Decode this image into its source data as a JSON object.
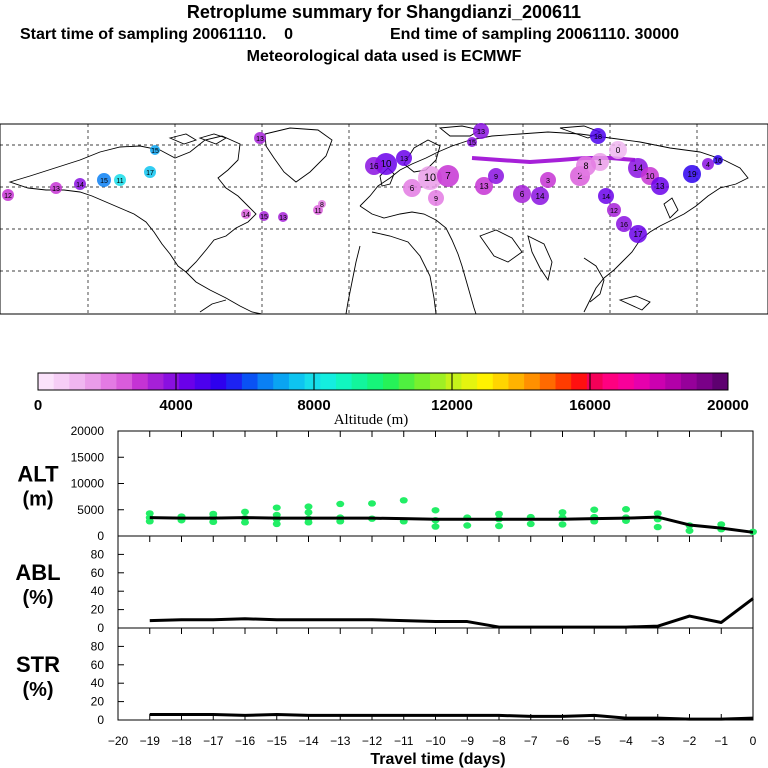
{
  "header": {
    "title": "Retroplume summary for Shangdianzi_200611",
    "start_line": "Start time of sampling 20061110.    0",
    "end_line": "End time of sampling 20061110. 30000",
    "met_line": "Meteorological data used is ECMWF"
  },
  "colors": {
    "line": "#000000",
    "alt_points": "#22ee66"
  },
  "colorbar": {
    "title": "Altitude (m)",
    "labels": [
      "0",
      "4000",
      "8000",
      "12000",
      "16000",
      "20000"
    ],
    "colors": [
      "#fbe3fb",
      "#f6cef6",
      "#f0b6f0",
      "#ea9ce9",
      "#e37ae3",
      "#d95cdb",
      "#c533d4",
      "#a620d8",
      "#8a10e0",
      "#6a00ea",
      "#4c00ee",
      "#2e00ef",
      "#1d22f2",
      "#0a52f4",
      "#0a80f4",
      "#0aa4f2",
      "#0ec4f0",
      "#16ddea",
      "#14eee0",
      "#11f6c0",
      "#12f59c",
      "#16f57a",
      "#26f258",
      "#4ff040",
      "#78f02e",
      "#9ff024",
      "#c5f21a",
      "#e4f40f",
      "#fff200",
      "#ffd500",
      "#ffb300",
      "#ff9000",
      "#ff6a00",
      "#ff3c00",
      "#ff1010",
      "#f40058",
      "#ff0080",
      "#f8009a",
      "#e600ad",
      "#cc00b0",
      "#b200a8",
      "#96009a",
      "#7a0088",
      "#5e0070"
    ]
  },
  "chart_data": [
    {
      "type": "line",
      "panel": "ALT",
      "ylabel": "ALT (m)",
      "ylabel_lines": [
        "ALT",
        "(m)"
      ],
      "ylim": [
        0,
        20000
      ],
      "yticks": [
        "0",
        "5000",
        "10000",
        "15000",
        "20000"
      ],
      "x": [
        -19,
        -18,
        -17,
        -16,
        -15,
        -14,
        -13,
        -12,
        -11,
        -10,
        -9,
        -8,
        -7,
        -6,
        -5,
        -4,
        -3,
        -2,
        -1,
        0
      ],
      "values": [
        3500,
        3400,
        3400,
        3500,
        3400,
        3400,
        3400,
        3400,
        3300,
        3200,
        3200,
        3200,
        3200,
        3200,
        3300,
        3400,
        3600,
        2100,
        1500,
        700
      ],
      "scatter": [
        {
          "x": -19,
          "y": [
            2800,
            3500,
            4300
          ]
        },
        {
          "x": -18,
          "y": [
            3000,
            3700
          ]
        },
        {
          "x": -17,
          "y": [
            2700,
            3600,
            4200
          ]
        },
        {
          "x": -16,
          "y": [
            2600,
            3400,
            4600
          ]
        },
        {
          "x": -15,
          "y": [
            2300,
            3200,
            4000,
            5400
          ]
        },
        {
          "x": -14,
          "y": [
            2600,
            3300,
            4500,
            5600
          ]
        },
        {
          "x": -13,
          "y": [
            2800,
            3500,
            6100
          ]
        },
        {
          "x": -12,
          "y": [
            3300,
            6200
          ]
        },
        {
          "x": -11,
          "y": [
            2800,
            6800
          ]
        },
        {
          "x": -10,
          "y": [
            1800,
            3000,
            4900
          ]
        },
        {
          "x": -9,
          "y": [
            2000,
            3500
          ]
        },
        {
          "x": -8,
          "y": [
            1900,
            3200,
            4200
          ]
        },
        {
          "x": -7,
          "y": [
            2300,
            3600
          ]
        },
        {
          "x": -6,
          "y": [
            2200,
            3500,
            4500
          ]
        },
        {
          "x": -5,
          "y": [
            2800,
            3600,
            5000
          ]
        },
        {
          "x": -4,
          "y": [
            2900,
            3500,
            5100
          ]
        },
        {
          "x": -3,
          "y": [
            1700,
            3200,
            4300
          ]
        },
        {
          "x": -2,
          "y": [
            1000,
            2000
          ]
        },
        {
          "x": -1,
          "y": [
            1300,
            2200
          ]
        },
        {
          "x": 0,
          "y": [
            800
          ]
        }
      ]
    },
    {
      "type": "line",
      "panel": "ABL",
      "ylabel": "ABL (%)",
      "ylabel_lines": [
        "ABL",
        "(%)"
      ],
      "ylim": [
        0,
        100
      ],
      "yticks": [
        "0",
        "20",
        "40",
        "60",
        "80"
      ],
      "x": [
        -19,
        -18,
        -17,
        -16,
        -15,
        -14,
        -13,
        -12,
        -11,
        -10,
        -9,
        -8,
        -7,
        -6,
        -5,
        -4,
        -3,
        -2,
        -1,
        0
      ],
      "values": [
        8,
        9,
        9,
        10,
        9,
        9,
        9,
        9,
        8,
        7,
        7,
        1,
        1,
        1,
        1,
        1,
        2,
        13,
        6,
        32
      ]
    },
    {
      "type": "line",
      "panel": "STR",
      "ylabel": "STR (%)",
      "ylabel_lines": [
        "STR",
        "(%)"
      ],
      "ylim": [
        0,
        100
      ],
      "yticks": [
        "0",
        "20",
        "40",
        "60",
        "80"
      ],
      "x": [
        -19,
        -18,
        -17,
        -16,
        -15,
        -14,
        -13,
        -12,
        -11,
        -10,
        -9,
        -8,
        -7,
        -6,
        -5,
        -4,
        -3,
        -2,
        -1,
        0
      ],
      "values": [
        6,
        6,
        6,
        5,
        6,
        5,
        5,
        5,
        5,
        5,
        5,
        5,
        4,
        4,
        5,
        2,
        2,
        1,
        1,
        2
      ]
    }
  ],
  "x_axis": {
    "xlabel": "Travel time (days)",
    "xlim": [
      -20,
      0
    ],
    "ticks": [
      "−20",
      "−19",
      "−18",
      "−17",
      "−16",
      "−15",
      "−14",
      "−13",
      "−12",
      "−11",
      "−10",
      "−9",
      "−8",
      "−7",
      "−6",
      "−5",
      "−4",
      "−3",
      "−2",
      "−1",
      "0"
    ]
  },
  "map": {
    "plumes": [
      {
        "label": "13",
        "color": "#8a10e0"
      },
      {
        "label": "13",
        "color": "#a620d8"
      },
      {
        "label": "10",
        "color": "#6a00ea"
      },
      {
        "label": "16",
        "color": "#8a10e0"
      },
      {
        "label": "13",
        "color": "#6a00ea"
      },
      {
        "label": "15",
        "color": "#0aa4f2"
      },
      {
        "label": "17",
        "color": "#0ec4f0"
      },
      {
        "label": "11",
        "color": "#16ddea"
      },
      {
        "label": "15",
        "color": "#0a80f4"
      },
      {
        "label": "14",
        "color": "#8a10e0"
      },
      {
        "label": "13",
        "color": "#c533d4"
      },
      {
        "label": "12",
        "color": "#c533d4"
      },
      {
        "label": "14",
        "color": "#d95cdb"
      },
      {
        "label": "15",
        "color": "#a620d8"
      },
      {
        "label": "13",
        "color": "#a620d8"
      },
      {
        "label": "11",
        "color": "#d95cdb"
      },
      {
        "label": "8",
        "color": "#e37ae3"
      },
      {
        "label": "6",
        "color": "#e37ae3"
      },
      {
        "label": "9",
        "color": "#e37ae3"
      },
      {
        "label": "10",
        "color": "#ea9ce9"
      },
      {
        "label": "7",
        "color": "#c533d4"
      },
      {
        "label": "13",
        "color": "#c533d4"
      },
      {
        "label": "9",
        "color": "#8a10e0"
      },
      {
        "label": "6",
        "color": "#a620d8"
      },
      {
        "label": "3",
        "color": "#c533d4"
      },
      {
        "label": "2",
        "color": "#d95cdb"
      },
      {
        "label": "1",
        "color": "#ea9ce9"
      },
      {
        "label": "0",
        "color": "#f0b6f0"
      },
      {
        "label": "14",
        "color": "#6a00ea"
      },
      {
        "label": "12",
        "color": "#a620d8"
      },
      {
        "label": "16",
        "color": "#8a10e0"
      },
      {
        "label": "17",
        "color": "#6a00ea"
      },
      {
        "label": "8",
        "color": "#e37ae3"
      },
      {
        "label": "14",
        "color": "#8a10e0"
      },
      {
        "label": "10",
        "color": "#c533d4"
      },
      {
        "label": "13",
        "color": "#6a00ea"
      },
      {
        "label": "19",
        "color": "#2e00ef"
      },
      {
        "label": "18",
        "color": "#4c00ee"
      },
      {
        "label": "4",
        "color": "#8a10e0"
      },
      {
        "label": "16",
        "color": "#2e00ef"
      },
      {
        "label": "15",
        "color": "#8a10e0"
      },
      {
        "label": "14",
        "color": "#8a10e0"
      }
    ]
  }
}
